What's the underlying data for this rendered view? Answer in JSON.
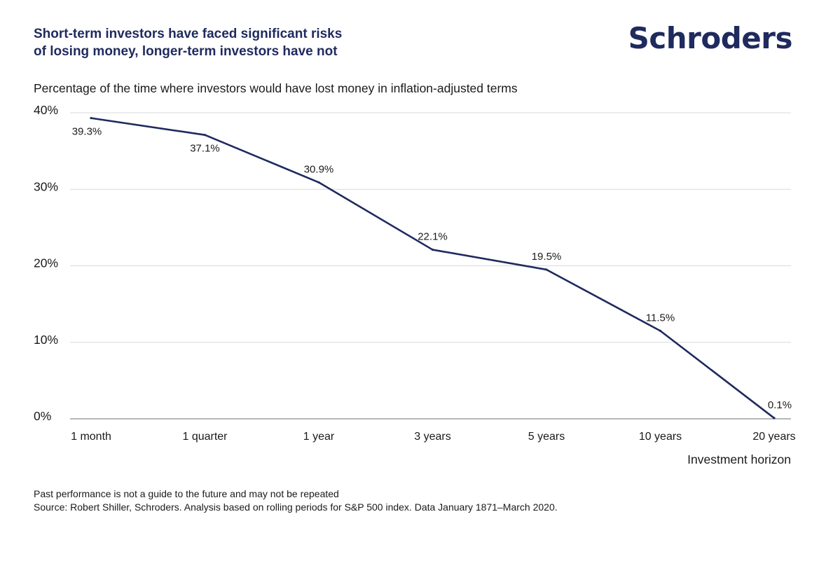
{
  "header": {
    "title_line1": "Short-term investors have faced significant risks",
    "title_line2": "of losing money, longer-term investors have not",
    "logo_text": "Schroders"
  },
  "chart_data": {
    "type": "line",
    "subtitle": "Percentage of the time where investors would have lost money in inflation-adjusted terms",
    "categories": [
      "1 month",
      "1 quarter",
      "1 year",
      "3 years",
      "5 years",
      "10 years",
      "20 years"
    ],
    "values": [
      39.3,
      37.1,
      30.9,
      22.1,
      19.5,
      11.5,
      0.1
    ],
    "data_labels": [
      "39.3%",
      "37.1%",
      "30.9%",
      "22.1%",
      "19.5%",
      "11.5%",
      "0.1%"
    ],
    "ylim": [
      0,
      40
    ],
    "yticks": [
      0,
      10,
      20,
      30,
      40
    ],
    "ytick_labels": [
      "0%",
      "10%",
      "20%",
      "30%",
      "40%"
    ],
    "xlabel": "Investment horizon",
    "ylabel": "",
    "grid": true,
    "colors": {
      "line": "#1f2a5e",
      "grid": "#d9d9d9",
      "axis": "#8c8c8c"
    }
  },
  "footer": {
    "note": "Past performance is not a guide to the future and may not be repeated",
    "source": "Source: Robert Shiller, Schroders. Analysis based on rolling periods for S&P 500 index. Data January 1871–March 2020."
  }
}
